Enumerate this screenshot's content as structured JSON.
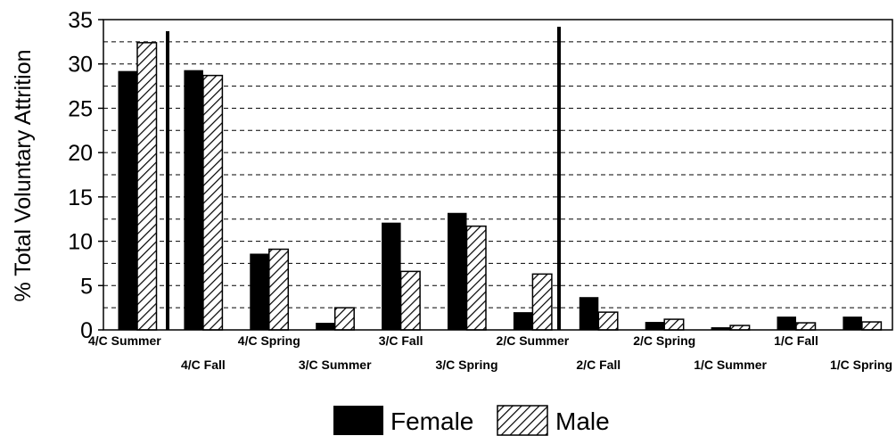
{
  "chart_data": {
    "type": "bar",
    "ylabel": "% Total Voluntary Attrition",
    "ylim": [
      0,
      35
    ],
    "yticks": [
      "0",
      "5",
      "10",
      "15",
      "20",
      "25",
      "30",
      "35"
    ],
    "categories": [
      "4/C Summer",
      "4/C Fall",
      "4/C Spring",
      "3/C Summer",
      "3/C Fall",
      "3/C Spring",
      "2/C Summer",
      "2/C Fall",
      "2/C Spring",
      "1/C Summer",
      "1/C Fall",
      "1/C Spring"
    ],
    "series": [
      {
        "name": "Female",
        "values": [
          29.2,
          29.3,
          8.6,
          0.8,
          12.1,
          13.2,
          2.0,
          3.7,
          0.9,
          0.3,
          1.5,
          1.5
        ]
      },
      {
        "name": "Male",
        "values": [
          32.4,
          28.7,
          9.1,
          2.5,
          6.6,
          11.7,
          6.3,
          2.0,
          1.2,
          0.5,
          0.8,
          0.9
        ]
      }
    ],
    "grid": "horizontal dashed",
    "legend_position": "bottom",
    "colors": {
      "female": "#000000",
      "male_hatch": "#000000",
      "background": "#ffffff"
    }
  }
}
